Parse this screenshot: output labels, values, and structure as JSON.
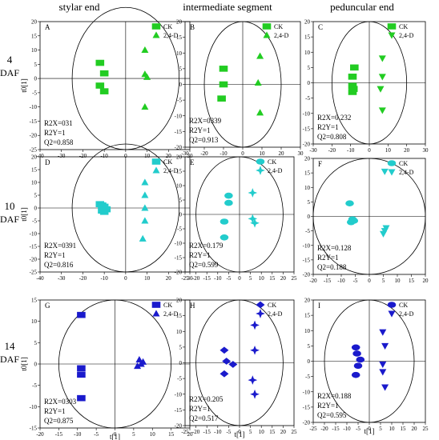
{
  "column_headers": [
    "stylar end",
    "intermediate segment",
    "peduncular end"
  ],
  "row_headers": [
    {
      "num": "4",
      "unit": "DAF"
    },
    {
      "num": "10",
      "unit": "DAF"
    },
    {
      "num": "14",
      "unit": "DAF"
    }
  ],
  "legend_labels": [
    "CK",
    "2,4-D"
  ],
  "row_colors": [
    "#22cc22",
    "#22cccc",
    "#1a1acc"
  ],
  "marker_shapes": {
    "CK": [
      "rect",
      "rect",
      "rect",
      "rect",
      "ellipse",
      "ellipse",
      "rect",
      "diamond",
      "ellipse"
    ],
    "2,4-D": [
      "triangle-up",
      "triangle-up",
      "triangle-down",
      "triangle-up",
      "star4",
      "triangle-down",
      "triangle-up",
      "star4",
      "triangle-down"
    ]
  },
  "chart_data": [
    {
      "type": "scatter",
      "panel": "A",
      "xlabel": "",
      "ylabel": "t0[1]",
      "xlim": [
        -40,
        30
      ],
      "ylim": [
        -25,
        20
      ],
      "xticks": [
        -40,
        -30,
        -20,
        -10,
        0,
        10,
        20,
        30
      ],
      "yticks": [
        -25,
        -20,
        -15,
        -10,
        -5,
        0,
        5,
        10,
        15,
        20
      ],
      "circle_r": 25,
      "stats": [
        "R2X=031",
        "R2Y=1",
        "Q2=0.858"
      ],
      "series": [
        {
          "name": "CK",
          "x": [
            -12,
            -10,
            -12,
            -10
          ],
          "y": [
            5.5,
            1.8,
            -2.5,
            -4.5
          ]
        },
        {
          "name": "2,4-D",
          "x": [
            9,
            9,
            10,
            9
          ],
          "y": [
            10,
            1.5,
            0.5,
            -10
          ]
        }
      ]
    },
    {
      "type": "scatter",
      "panel": "B",
      "xlabel": "",
      "ylabel": "",
      "xlim": [
        -30,
        30
      ],
      "ylim": [
        -20,
        20
      ],
      "xticks": [
        -30,
        -20,
        -10,
        0,
        10,
        20,
        30
      ],
      "yticks": [
        -20,
        -15,
        -10,
        -5,
        0,
        5,
        10,
        15,
        20
      ],
      "circle_r": 20,
      "stats": [
        "R2X=0339",
        "R2Y=1",
        "Q2=0.913"
      ],
      "series": [
        {
          "name": "CK",
          "x": [
            -10,
            -10,
            -11
          ],
          "y": [
            5,
            0,
            -4.5
          ]
        },
        {
          "name": "2,4-D",
          "x": [
            9,
            8,
            9
          ],
          "y": [
            9,
            0.5,
            -9
          ]
        }
      ]
    },
    {
      "type": "scatter",
      "panel": "C",
      "xlabel": "",
      "ylabel": "",
      "xlim": [
        -30,
        30
      ],
      "ylim": [
        -20,
        20
      ],
      "xticks": [
        -30,
        -20,
        -10,
        0,
        10,
        20,
        30
      ],
      "yticks": [
        -20,
        -15,
        -10,
        -5,
        0,
        5,
        10,
        15,
        20
      ],
      "circle_r": 20,
      "stats": [
        "R2X=0.232",
        "R2Y=1",
        "Q2=0.808"
      ],
      "series": [
        {
          "name": "CK",
          "x": [
            -8,
            -9,
            -9,
            -8.5,
            -9
          ],
          "y": [
            5,
            2,
            -1,
            -2,
            -3
          ]
        },
        {
          "name": "2,4-D",
          "x": [
            7,
            7,
            6,
            7
          ],
          "y": [
            8,
            2,
            -2,
            -9
          ]
        }
      ]
    },
    {
      "type": "scatter",
      "panel": "D",
      "xlabel": "",
      "ylabel": "t0[1]",
      "xlim": [
        -40,
        30
      ],
      "ylim": [
        -25,
        20
      ],
      "xticks": [
        -40,
        -30,
        -20,
        -10,
        0,
        10,
        20,
        30
      ],
      "yticks": [
        -25,
        -20,
        -15,
        -10,
        -5,
        0,
        5,
        10,
        15,
        20
      ],
      "circle_r": 25,
      "stats": [
        "R2X=0391",
        "R2Y=1",
        "Q2=0.816"
      ],
      "series": [
        {
          "name": "CK",
          "x": [
            -12,
            -11,
            -10,
            -9,
            -11,
            -10
          ],
          "y": [
            1.5,
            1,
            0.5,
            -0.5,
            -1,
            -1.5
          ]
        },
        {
          "name": "2,4-D",
          "x": [
            9,
            9,
            9,
            9,
            8
          ],
          "y": [
            10,
            5,
            0,
            -5,
            -12
          ]
        }
      ]
    },
    {
      "type": "scatter",
      "panel": "E",
      "xlabel": "",
      "ylabel": "",
      "xlim": [
        -25,
        25
      ],
      "ylim": [
        -20,
        20
      ],
      "xticks": [
        -25,
        -20,
        -15,
        -10,
        -5,
        0,
        5,
        10,
        15,
        20,
        25
      ],
      "yticks": [
        -20,
        -15,
        -10,
        -5,
        0,
        5,
        10,
        15,
        20
      ],
      "circle_r": 20,
      "stats": [
        "R2X=0.179",
        "R2Y=1",
        "Q2=0.599"
      ],
      "series": [
        {
          "name": "CK",
          "x": [
            -5,
            -5,
            -7,
            -7
          ],
          "y": [
            6.5,
            4,
            -2.5,
            -8
          ]
        },
        {
          "name": "2,4-D",
          "x": [
            6,
            6,
            7
          ],
          "y": [
            7.5,
            -1.5,
            -3
          ]
        }
      ]
    },
    {
      "type": "scatter",
      "panel": "F",
      "xlabel": "",
      "ylabel": "",
      "xlim": [
        -20,
        20
      ],
      "ylim": [
        -20,
        20
      ],
      "xticks": [
        -20,
        -15,
        -10,
        -5,
        0,
        5,
        10,
        15,
        20
      ],
      "yticks": [
        -20,
        -15,
        -10,
        -5,
        0,
        5,
        10,
        15,
        20
      ],
      "circle_r": 20,
      "stats": [
        "R2X=0.128",
        "R2Y=1",
        "Q2=0.188"
      ],
      "series": [
        {
          "name": "CK",
          "x": [
            -7,
            -6,
            -5.5,
            -6.5
          ],
          "y": [
            4.5,
            -1,
            -1.5,
            -2
          ]
        },
        {
          "name": "2,4-D",
          "x": [
            5.5,
            5.5,
            5,
            6
          ],
          "y": [
            15.5,
            -5,
            -6,
            -4
          ]
        }
      ]
    },
    {
      "type": "scatter",
      "panel": "G",
      "xlabel": "t[1]",
      "ylabel": "t0[1]",
      "xlim": [
        -20,
        20
      ],
      "ylim": [
        -15,
        15
      ],
      "xticks": [
        -20,
        -15,
        -10,
        -5,
        0,
        5,
        10,
        15,
        20
      ],
      "yticks": [
        -15,
        -10,
        -5,
        0,
        5,
        10,
        15
      ],
      "circle_r": 15,
      "stats": [
        "R2X=0303",
        "R2Y=1",
        "Q2=0.875"
      ],
      "series": [
        {
          "name": "CK",
          "x": [
            -9,
            -9,
            -9,
            -9
          ],
          "y": [
            11.5,
            -1,
            -2.5,
            -8
          ]
        },
        {
          "name": "2,4-D",
          "x": [
            6.5,
            7.5,
            7,
            6
          ],
          "y": [
            1,
            0.5,
            0,
            -0.5
          ]
        }
      ]
    },
    {
      "type": "scatter",
      "panel": "H",
      "xlabel": "t[1]",
      "ylabel": "",
      "xlim": [
        -25,
        25
      ],
      "ylim": [
        -20,
        20
      ],
      "xticks": [
        -25,
        -20,
        -15,
        -10,
        -5,
        0,
        5,
        10,
        15,
        20,
        25
      ],
      "yticks": [
        -20,
        -15,
        -10,
        -5,
        0,
        5,
        10,
        15,
        20
      ],
      "circle_r": 20,
      "stats": [
        "R2X=0.205",
        "R2Y=1",
        "Q2=0.517"
      ],
      "series": [
        {
          "name": "CK",
          "x": [
            -7,
            -6,
            -3,
            -7
          ],
          "y": [
            4,
            0.5,
            -0.5,
            -3.5
          ]
        },
        {
          "name": "2,4-D",
          "x": [
            7,
            7,
            6,
            7
          ],
          "y": [
            12,
            4,
            -5.5,
            -10
          ]
        }
      ]
    },
    {
      "type": "scatter",
      "panel": "I",
      "xlabel": "t[1]",
      "ylabel": "",
      "xlim": [
        -25,
        25
      ],
      "ylim": [
        -20,
        20
      ],
      "xticks": [
        -25,
        -20,
        -15,
        -10,
        -5,
        0,
        5,
        10,
        15,
        20,
        25
      ],
      "yticks": [
        -20,
        -15,
        -10,
        -5,
        0,
        5,
        10,
        15,
        20
      ],
      "circle_r": 20,
      "stats": [
        "R2X=0.188",
        "R2Y=1",
        "Q2=0.595"
      ],
      "series": [
        {
          "name": "CK",
          "x": [
            -6,
            -5.5,
            -4,
            -5,
            -6
          ],
          "y": [
            4.5,
            2.5,
            0.5,
            -1.5,
            -4.5
          ]
        },
        {
          "name": "2,4-D",
          "x": [
            6,
            7,
            6,
            7,
            6
          ],
          "y": [
            9.5,
            5,
            -3.5,
            -8.5,
            -1
          ]
        }
      ]
    }
  ]
}
